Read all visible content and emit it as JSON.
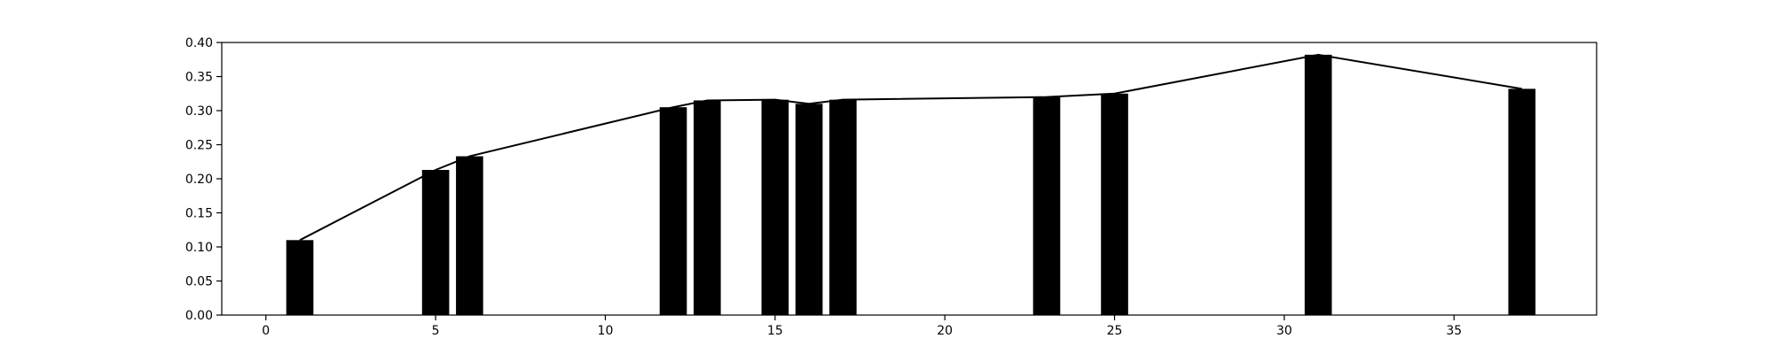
{
  "chart_data": {
    "type": "bar",
    "x": [
      1,
      5,
      6,
      12,
      13,
      15,
      16,
      17,
      23,
      25,
      31,
      37
    ],
    "values": [
      0.11,
      0.213,
      0.233,
      0.305,
      0.315,
      0.316,
      0.31,
      0.316,
      0.32,
      0.325,
      0.382,
      0.332
    ],
    "line_overlay": true,
    "title": "",
    "xlabel": "",
    "ylabel": "",
    "xlim": [
      -1.3,
      39.2
    ],
    "ylim": [
      0,
      0.4
    ],
    "xticks": [
      0,
      5,
      10,
      15,
      20,
      25,
      30,
      35
    ],
    "yticks": [
      0.0,
      0.05,
      0.1,
      0.15,
      0.2,
      0.25,
      0.3,
      0.35,
      0.4
    ],
    "ytick_labels": [
      "0.00",
      "0.05",
      "0.10",
      "0.15",
      "0.20",
      "0.25",
      "0.30",
      "0.35",
      "0.40"
    ],
    "bar_width": 0.8,
    "grid": false,
    "colors": {
      "bars": "#000000",
      "line": "#000000",
      "axes": "#000000",
      "background": "#ffffff"
    }
  }
}
